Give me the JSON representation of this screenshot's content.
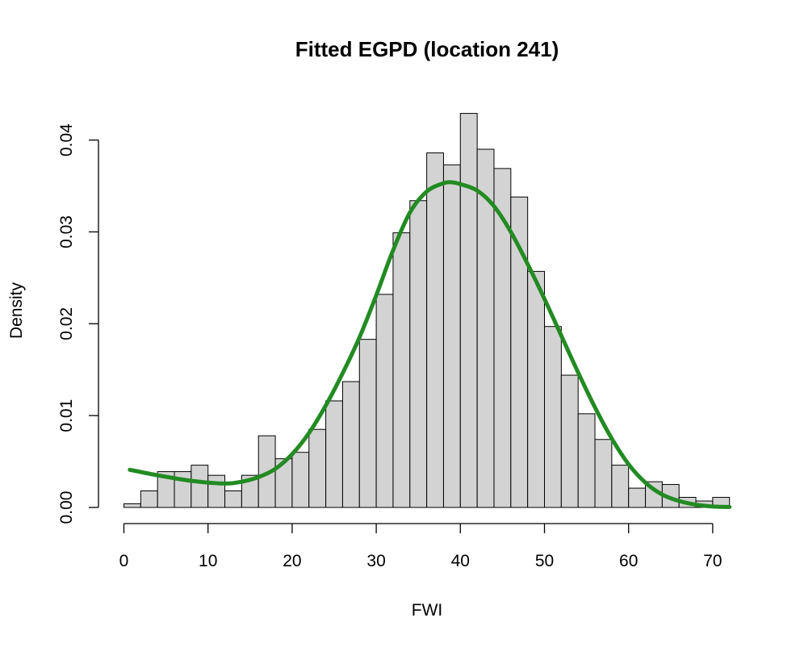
{
  "chart_data": {
    "type": "bar",
    "title": "Fitted EGPD (location 241)",
    "xlabel": "FWI",
    "ylabel": "Density",
    "xlim": [
      0,
      72
    ],
    "ylim": [
      0,
      0.043
    ],
    "x_ticks": [
      0,
      10,
      20,
      30,
      40,
      50,
      60,
      70
    ],
    "y_ticks": [
      0.0,
      0.01,
      0.02,
      0.03,
      0.04
    ],
    "y_tick_labels": [
      "0.00",
      "0.01",
      "0.02",
      "0.03",
      "0.04"
    ],
    "grid": false,
    "bin_width": 2,
    "bins": [
      {
        "start": 0,
        "end": 2,
        "density": 0.0004
      },
      {
        "start": 2,
        "end": 4,
        "density": 0.0018
      },
      {
        "start": 4,
        "end": 6,
        "density": 0.0039
      },
      {
        "start": 6,
        "end": 8,
        "density": 0.0039
      },
      {
        "start": 8,
        "end": 10,
        "density": 0.0046
      },
      {
        "start": 10,
        "end": 12,
        "density": 0.0035
      },
      {
        "start": 12,
        "end": 14,
        "density": 0.0018
      },
      {
        "start": 14,
        "end": 16,
        "density": 0.0035
      },
      {
        "start": 16,
        "end": 18,
        "density": 0.0078
      },
      {
        "start": 18,
        "end": 20,
        "density": 0.0053
      },
      {
        "start": 20,
        "end": 22,
        "density": 0.006
      },
      {
        "start": 22,
        "end": 24,
        "density": 0.0085
      },
      {
        "start": 24,
        "end": 26,
        "density": 0.0116
      },
      {
        "start": 26,
        "end": 28,
        "density": 0.0137
      },
      {
        "start": 28,
        "end": 30,
        "density": 0.0183
      },
      {
        "start": 30,
        "end": 32,
        "density": 0.0232
      },
      {
        "start": 32,
        "end": 34,
        "density": 0.0299
      },
      {
        "start": 34,
        "end": 36,
        "density": 0.0334
      },
      {
        "start": 36,
        "end": 38,
        "density": 0.0386
      },
      {
        "start": 38,
        "end": 40,
        "density": 0.0373
      },
      {
        "start": 40,
        "end": 42,
        "density": 0.0429
      },
      {
        "start": 42,
        "end": 44,
        "density": 0.039
      },
      {
        "start": 44,
        "end": 46,
        "density": 0.0369
      },
      {
        "start": 46,
        "end": 48,
        "density": 0.0338
      },
      {
        "start": 48,
        "end": 50,
        "density": 0.0257
      },
      {
        "start": 50,
        "end": 52,
        "density": 0.0197
      },
      {
        "start": 52,
        "end": 54,
        "density": 0.0144
      },
      {
        "start": 54,
        "end": 56,
        "density": 0.0102
      },
      {
        "start": 56,
        "end": 58,
        "density": 0.0074
      },
      {
        "start": 58,
        "end": 60,
        "density": 0.0046
      },
      {
        "start": 60,
        "end": 62,
        "density": 0.0021
      },
      {
        "start": 62,
        "end": 64,
        "density": 0.0028
      },
      {
        "start": 64,
        "end": 66,
        "density": 0.0025
      },
      {
        "start": 66,
        "end": 68,
        "density": 0.0011
      },
      {
        "start": 68,
        "end": 70,
        "density": 0.0007
      },
      {
        "start": 70,
        "end": 72,
        "density": 0.0011
      }
    ],
    "fitted_curve": {
      "color": "#228b22",
      "x": [
        0.7,
        4,
        8,
        12,
        14,
        16,
        18,
        20,
        22,
        24,
        26,
        28,
        30,
        32,
        34,
        36,
        38,
        39,
        40,
        42,
        44,
        46,
        48,
        50,
        52,
        54,
        56,
        58,
        60,
        62,
        64,
        66,
        68,
        70,
        72
      ],
      "y": [
        0.0041,
        0.0035,
        0.0029,
        0.0026,
        0.0028,
        0.0033,
        0.0042,
        0.0058,
        0.0081,
        0.0111,
        0.0146,
        0.0185,
        0.0231,
        0.028,
        0.0321,
        0.0344,
        0.0353,
        0.0354,
        0.0352,
        0.0345,
        0.0328,
        0.03,
        0.0265,
        0.0227,
        0.0187,
        0.0147,
        0.0109,
        0.0075,
        0.0047,
        0.0027,
        0.0014,
        0.0007,
        0.0003,
        0.0001,
        5e-05
      ]
    },
    "bar_fill": "#d3d3d3",
    "bar_stroke": "#000000"
  }
}
